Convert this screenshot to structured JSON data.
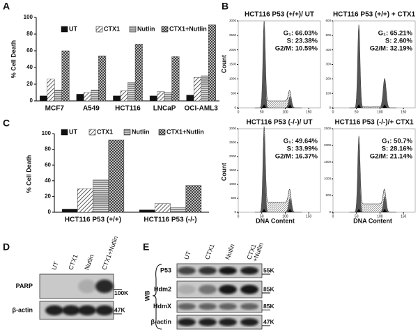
{
  "panel_labels": [
    "A",
    "B",
    "C",
    "D",
    "E"
  ],
  "chart_data": [
    {
      "type": "bar",
      "y_label": "% Cell Death",
      "categories": [
        "MCF7",
        "A549",
        "HCT116",
        "LNCaP",
        "OCI-AML3"
      ],
      "series": [
        {
          "name": "UT",
          "color": "#111111",
          "pattern": "solid",
          "values": [
            6,
            8,
            6,
            6,
            7
          ]
        },
        {
          "name": "CTX1",
          "color": "#555555",
          "pattern": "diagonal",
          "values": [
            26,
            10,
            12,
            11,
            28
          ]
        },
        {
          "name": "Nutlin",
          "color": "#555555",
          "pattern": "horizontal",
          "values": [
            13,
            13,
            22,
            10,
            30
          ]
        },
        {
          "name": "CTX1+Nutlin",
          "color": "#444444",
          "pattern": "cross",
          "values": [
            60,
            54,
            68,
            53,
            91
          ]
        }
      ],
      "ylim": [
        0,
        100
      ],
      "yticks": [
        0,
        20,
        40,
        60,
        80,
        100
      ]
    },
    {
      "type": "bar",
      "y_label": "% Cell Death",
      "categories": [
        "HCT116 P53 (+/+)",
        "HCT116 P53 (-/-)"
      ],
      "series": [
        {
          "name": "UT",
          "color": "#111111",
          "pattern": "solid",
          "values": [
            4,
            3
          ]
        },
        {
          "name": "CTX1",
          "color": "#555555",
          "pattern": "diagonal",
          "values": [
            30,
            11
          ]
        },
        {
          "name": "Nutlin",
          "color": "#555555",
          "pattern": "horizontal",
          "values": [
            41,
            6
          ]
        },
        {
          "name": "CTX1+Nutlin",
          "color": "#444444",
          "pattern": "cross",
          "values": [
            92,
            34
          ]
        }
      ],
      "ylim": [
        0,
        100
      ],
      "yticks": [
        0,
        20,
        40,
        60,
        80,
        100
      ]
    }
  ],
  "flow": {
    "x_label": "DNA Content",
    "y_label": "Count",
    "xlim": [
      0,
      175
    ],
    "xticks": [
      0,
      50,
      100,
      150
    ],
    "plots": [
      {
        "title": "HCT116 P53 (+/+)/  UT",
        "stats": [
          "G₁: 66.03%",
          "S: 23.38%",
          "G2/M: 10.59%"
        ],
        "ylim": [
          0,
          3000
        ],
        "yticks": [
          0,
          500,
          1000,
          1500,
          2000,
          2500,
          3000
        ]
      },
      {
        "title": "HCT116 P53 (+/+) + CTX1",
        "stats": [
          "G₁: 65.21%",
          "S: 2.60%",
          "G2/M: 32.19%"
        ],
        "ylim": [
          0,
          600
        ],
        "yticks": [
          0,
          100,
          200,
          300,
          400,
          500,
          600
        ]
      },
      {
        "title": "HCT116 P53 (-/-)/ UT",
        "stats": [
          "G₁: 49.64%",
          "S: 33.99%",
          "G2/M: 16.37%"
        ],
        "ylim": [
          0,
          3000
        ],
        "yticks": [
          0,
          500,
          1000,
          1500,
          2000,
          2500,
          3000
        ]
      },
      {
        "title": "HCT116 P53 (-/-)/+ CTX1",
        "stats": [
          "G₁: 50.7%",
          "S: 28.16%",
          "G2/M: 21.14%"
        ],
        "ylim": [
          0,
          2500
        ],
        "yticks": [
          0,
          500,
          1000,
          1500,
          2000,
          2500
        ]
      }
    ]
  },
  "blot_d": {
    "lanes": [
      "UT",
      "CTX1",
      "Nutlin",
      "CTX1+Nutlin"
    ],
    "rows": [
      {
        "label": "PARP",
        "marker": "100K"
      },
      {
        "label": "β-actin",
        "marker": "47K"
      }
    ]
  },
  "blot_e": {
    "side_label": "WB",
    "lanes": [
      "UT",
      "CTX1",
      "Nutlin",
      "CTX1\n+Nutlin"
    ],
    "rows": [
      {
        "label": "P53",
        "marker": "55K"
      },
      {
        "label": "Hdm2",
        "marker": "85K"
      },
      {
        "label": "HdmX",
        "marker": "85K"
      },
      {
        "label": "β-actin",
        "marker": "47K"
      }
    ]
  }
}
